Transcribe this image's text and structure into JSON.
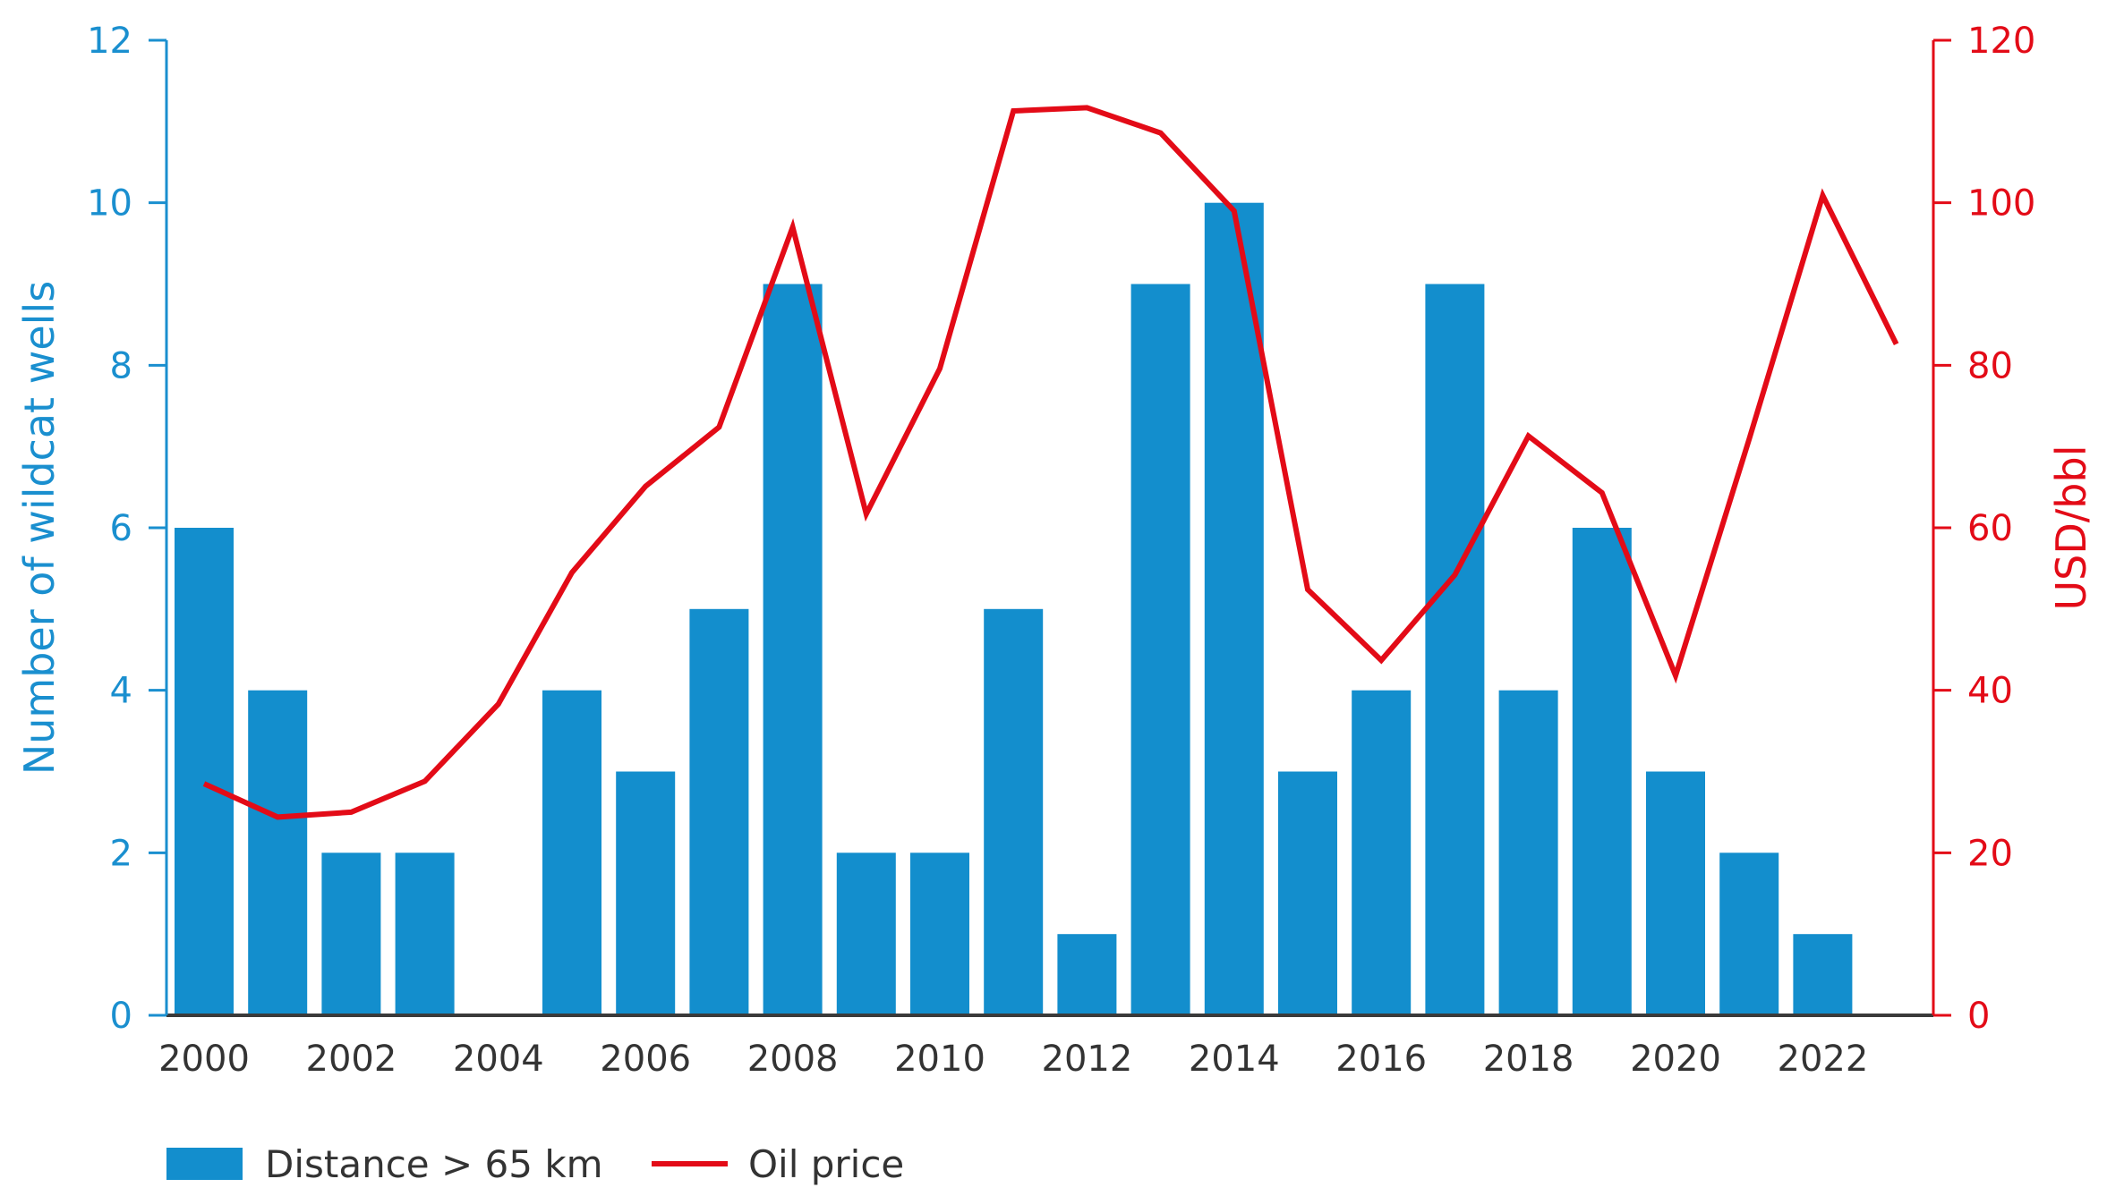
{
  "chart_data": {
    "type": "bar+line",
    "title": "",
    "categories": [
      "2000",
      "2001",
      "2002",
      "2003",
      "2004",
      "2005",
      "2006",
      "2007",
      "2008",
      "2009",
      "2010",
      "2011",
      "2012",
      "2013",
      "2014",
      "2015",
      "2016",
      "2017",
      "2018",
      "2019",
      "2020",
      "2021",
      "2022",
      "2023"
    ],
    "series": [
      {
        "name": "Distance > 65 km",
        "type": "bar",
        "axis": "left",
        "color": "#138ecd",
        "values": [
          6,
          4,
          2,
          2,
          0,
          4,
          3,
          5,
          9,
          2,
          2,
          5,
          1,
          9,
          10,
          3,
          4,
          9,
          4,
          6,
          3,
          2,
          1,
          null
        ]
      },
      {
        "name": "Oil price",
        "type": "line",
        "axis": "right",
        "color": "#e30b17",
        "values": [
          28.5,
          24.4,
          25.0,
          28.8,
          38.3,
          54.5,
          65.1,
          72.4,
          97.0,
          61.7,
          79.6,
          111.3,
          111.7,
          108.6,
          99.0,
          52.4,
          43.7,
          54.2,
          71.3,
          64.3,
          41.8,
          70.9,
          100.9,
          82.6
        ]
      }
    ],
    "xlabel": "",
    "ylabel": "Number of wildcat wells",
    "y2label": "USD/bbl",
    "ylim": [
      0,
      12
    ],
    "y2lim": [
      0,
      120
    ],
    "yticks": [
      0,
      2,
      4,
      6,
      8,
      10,
      12
    ],
    "y2ticks": [
      0,
      20,
      40,
      60,
      80,
      100,
      120
    ],
    "xticks": [
      "2000",
      "2002",
      "2004",
      "2006",
      "2008",
      "2010",
      "2012",
      "2014",
      "2016",
      "2018",
      "2020",
      "2022"
    ],
    "grid": false,
    "legend_position": "bottom-left"
  },
  "axes": {
    "left_title": "Number of wildcat wells",
    "right_title": "USD/bbl",
    "left_color": "#1a8fcf",
    "right_color": "#e30b17"
  },
  "legend": {
    "items": [
      {
        "label": "Distance > 65 km",
        "type": "bar",
        "color": "#138ecd"
      },
      {
        "label": "Oil price",
        "type": "line",
        "color": "#e30b17"
      }
    ]
  }
}
